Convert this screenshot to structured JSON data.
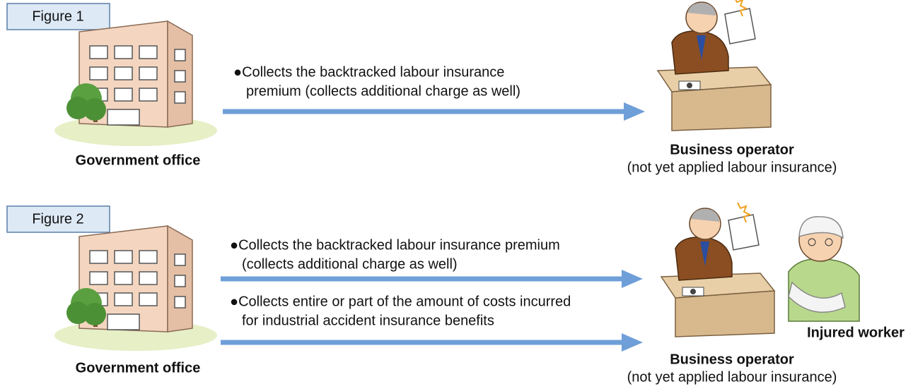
{
  "figures": [
    {
      "label": "Figure 1",
      "source": "Government office",
      "target": "Business operator",
      "target_note": "(not yet applied labour insurance)",
      "arrows": [
        {
          "lines": [
            "●Collects the backtracked labour insurance",
            "premium (collects additional charge as well)"
          ]
        }
      ]
    },
    {
      "label": "Figure 2",
      "source": "Government office",
      "target": "Business operator",
      "target_note": "(not yet applied labour insurance)",
      "worker": "Injured worker",
      "arrows": [
        {
          "lines": [
            "●Collects the backtracked labour insurance premium",
            "(collects additional charge as well)"
          ]
        },
        {
          "lines": [
            "●Collects entire or part of the amount of costs incurred",
            "for industrial accident insurance benefits"
          ]
        }
      ]
    }
  ]
}
